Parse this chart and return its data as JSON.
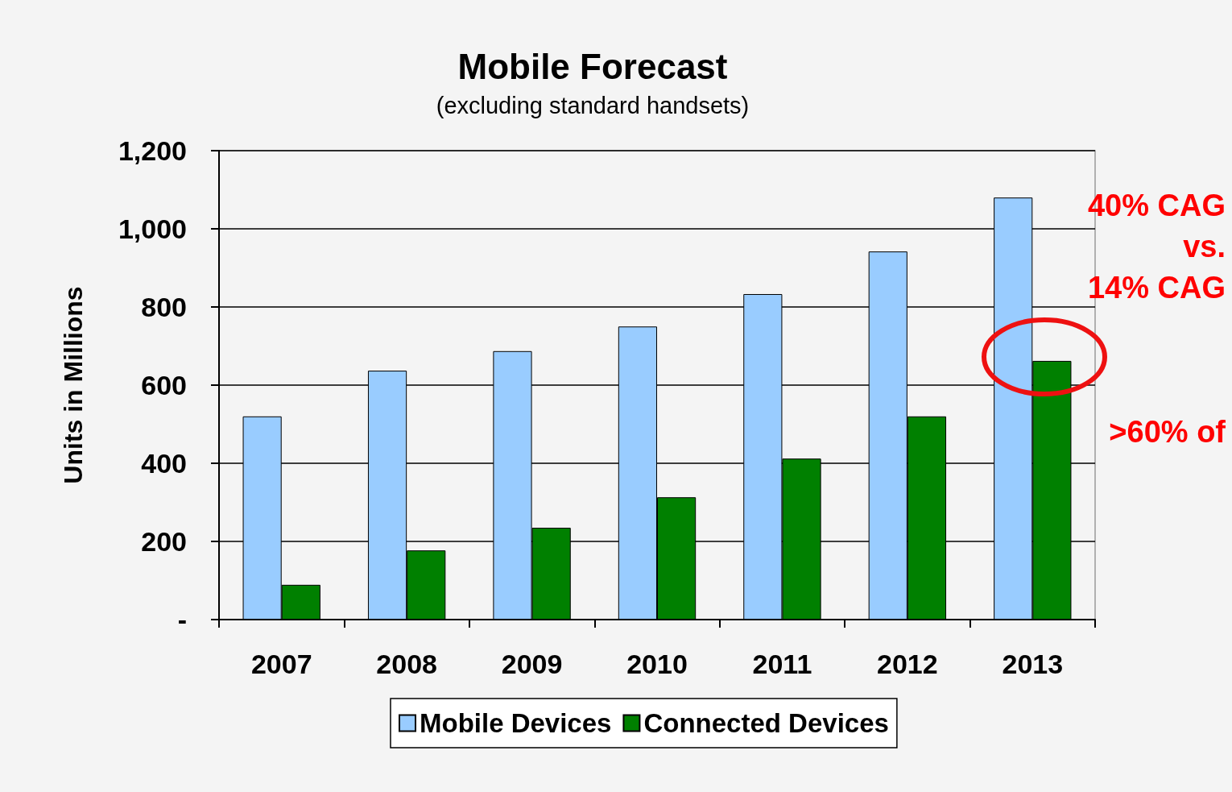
{
  "chart_data": {
    "type": "bar",
    "title": "Mobile Forecast",
    "subtitle": "(excluding standard handsets)",
    "ylabel": "Units in Millions",
    "categories": [
      "2007",
      "2008",
      "2009",
      "2010",
      "2011",
      "2012",
      "2013"
    ],
    "series": [
      {
        "name": "Mobile Devices",
        "color": "#99ccff",
        "values": [
          520,
          637,
          687,
          750,
          833,
          942,
          1080
        ]
      },
      {
        "name": "Connected Devices",
        "color": "#008000",
        "values": [
          89,
          177,
          235,
          313,
          412,
          520,
          662
        ]
      }
    ],
    "ylim": [
      0,
      1200
    ],
    "yticks": [
      {
        "value": 0,
        "label": "-"
      },
      200,
      400,
      600,
      800,
      {
        "value": 1000,
        "label": "1,000"
      },
      {
        "value": 1200,
        "label": "1,200"
      }
    ],
    "grid": "y",
    "legend": "bottom",
    "annotations": [
      "40% CAG",
      "vs.",
      "14% CAG",
      ">60% of"
    ]
  }
}
